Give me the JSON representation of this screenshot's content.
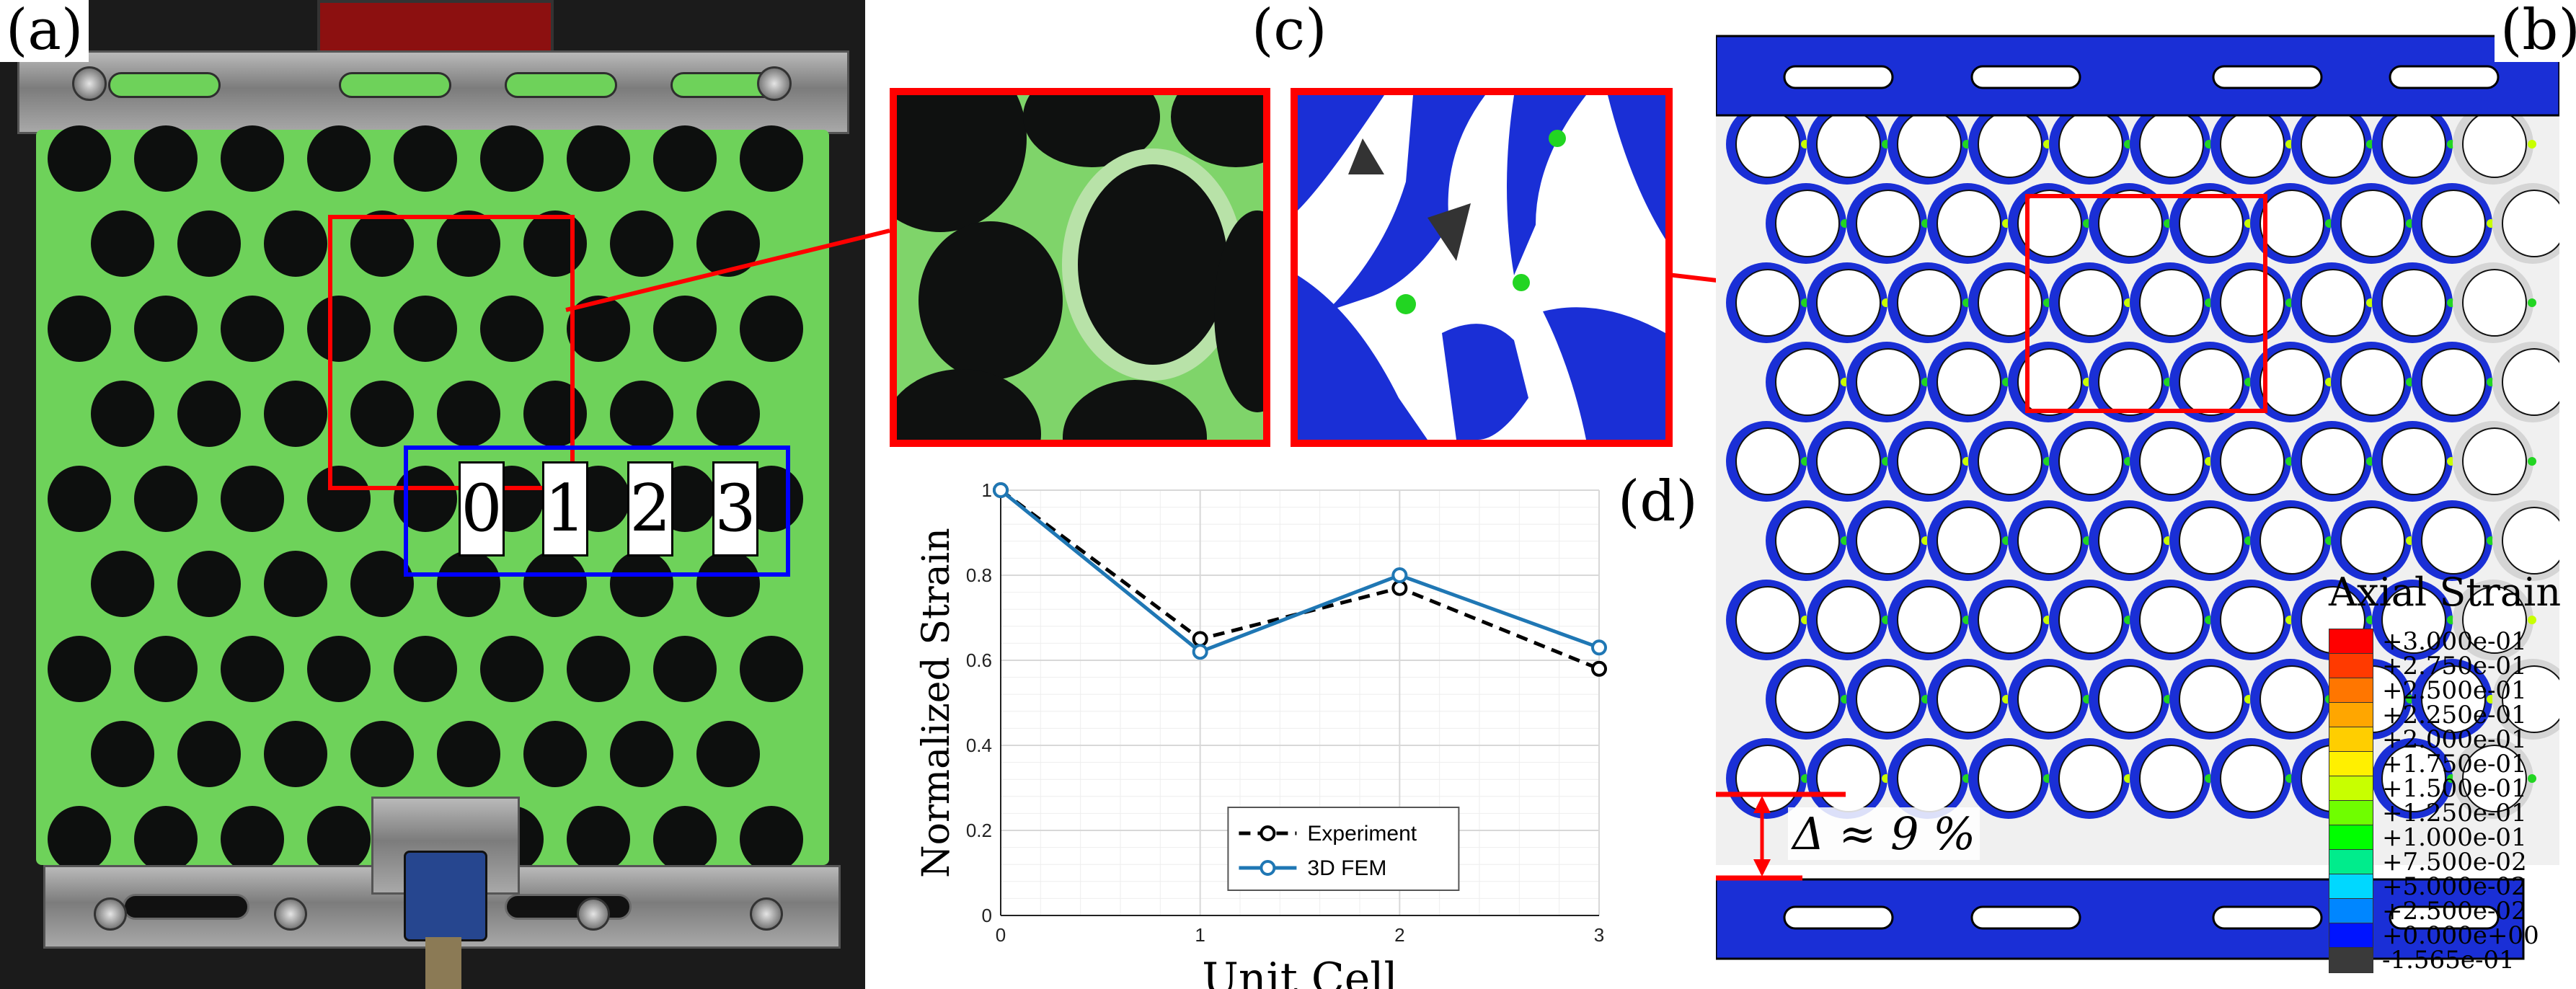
{
  "panel_labels": {
    "a": "(a)",
    "b": "(b)",
    "c": "(c)",
    "d": "(d)"
  },
  "unit_cell_labels": [
    "0",
    "1",
    "2",
    "3"
  ],
  "delta_annotation": "Δ ≈ 9 %",
  "colors": {
    "green_specimen": "#6ed25a",
    "fem_blue": "#1a2fd6",
    "highlight_red": "#ff0000",
    "highlight_blue": "#0000ff"
  },
  "legend": {
    "title": "Axial Strain",
    "entries": [
      {
        "label": "+3.000e-01",
        "color": "#ff0000"
      },
      {
        "label": "+2.750e-01",
        "color": "#ff3a00"
      },
      {
        "label": "+2.500e-01",
        "color": "#ff7600"
      },
      {
        "label": "+2.250e-01",
        "color": "#ffa600"
      },
      {
        "label": "+2.000e-01",
        "color": "#ffce00"
      },
      {
        "label": "+1.750e-01",
        "color": "#fff000"
      },
      {
        "label": "+1.500e-01",
        "color": "#c8ff00"
      },
      {
        "label": "+1.250e-01",
        "color": "#6ffe00"
      },
      {
        "label": "+1.000e-01",
        "color": "#00ff00"
      },
      {
        "label": "+7.500e-02",
        "color": "#00ec8c"
      },
      {
        "label": "+5.000e-02",
        "color": "#00d8ff"
      },
      {
        "label": "+2.500e-02",
        "color": "#0086ff"
      },
      {
        "label": "+0.000e+00",
        "color": "#0014ff"
      },
      {
        "label": "-1.565e-01",
        "color": "#3a3a3a"
      }
    ]
  },
  "chart_data": {
    "type": "line",
    "title": "",
    "xlabel": "Unit Cell",
    "ylabel": "Normalized Strain",
    "xlim": [
      0,
      3
    ],
    "ylim": [
      0,
      1
    ],
    "x": [
      0,
      1,
      2,
      3
    ],
    "xticks": [
      "0",
      "1",
      "2",
      "3"
    ],
    "yticks": [
      "0",
      "0.2",
      "0.4",
      "0.6",
      "0.8",
      "1"
    ],
    "grid": true,
    "legend_position": "bottom-center",
    "series": [
      {
        "name": "Experiment",
        "values": [
          1.0,
          0.65,
          0.77,
          0.58
        ],
        "color": "#000000",
        "style": "dashed",
        "marker": "circle"
      },
      {
        "name": "3D FEM",
        "values": [
          1.0,
          0.62,
          0.8,
          0.63
        ],
        "color": "#1f77b4",
        "style": "solid",
        "marker": "circle"
      }
    ]
  }
}
